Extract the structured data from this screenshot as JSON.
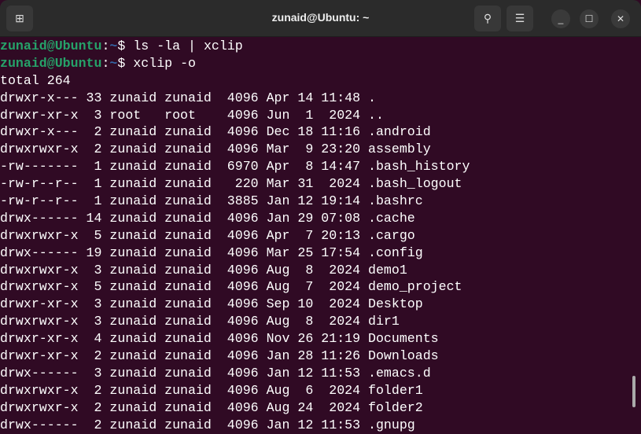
{
  "window": {
    "title": "zunaid@Ubuntu: ~"
  },
  "icons": {
    "new_tab": "new-tab-icon",
    "search": "search-icon",
    "menu": "hamburger-menu-icon",
    "minimize": "minimize-icon",
    "maximize": "maximize-icon",
    "close": "close-icon"
  },
  "colors": {
    "background": "#300a24",
    "prompt_user": "#26a269",
    "prompt_path": "#3465a4"
  },
  "prompts": [
    {
      "user": "zunaid@Ubuntu",
      "sep": ":",
      "path": "~",
      "sym": "$",
      "command": " ls -la | xclip"
    },
    {
      "user": "zunaid@Ubuntu",
      "sep": ":",
      "path": "~",
      "sym": "$",
      "command": " xclip -o"
    }
  ],
  "output": [
    "total 264",
    "drwxr-x--- 33 zunaid zunaid  4096 Apr 14 11:48 .",
    "drwxr-xr-x  3 root   root    4096 Jun  1  2024 ..",
    "drwxr-x---  2 zunaid zunaid  4096 Dec 18 11:16 .android",
    "drwxrwxr-x  2 zunaid zunaid  4096 Mar  9 23:20 assembly",
    "-rw-------  1 zunaid zunaid  6970 Apr  8 14:47 .bash_history",
    "-rw-r--r--  1 zunaid zunaid   220 Mar 31  2024 .bash_logout",
    "-rw-r--r--  1 zunaid zunaid  3885 Jan 12 19:14 .bashrc",
    "drwx------ 14 zunaid zunaid  4096 Jan 29 07:08 .cache",
    "drwxrwxr-x  5 zunaid zunaid  4096 Apr  7 20:13 .cargo",
    "drwx------ 19 zunaid zunaid  4096 Mar 25 17:54 .config",
    "drwxrwxr-x  3 zunaid zunaid  4096 Aug  8  2024 demo1",
    "drwxrwxr-x  5 zunaid zunaid  4096 Aug  7  2024 demo_project",
    "drwxr-xr-x  3 zunaid zunaid  4096 Sep 10  2024 Desktop",
    "drwxrwxr-x  3 zunaid zunaid  4096 Aug  8  2024 dir1",
    "drwxr-xr-x  4 zunaid zunaid  4096 Nov 26 21:19 Documents",
    "drwxr-xr-x  2 zunaid zunaid  4096 Jan 28 11:26 Downloads",
    "drwx------  3 zunaid zunaid  4096 Jan 12 11:53 .emacs.d",
    "drwxrwxr-x  2 zunaid zunaid  4096 Aug  6  2024 folder1",
    "drwxrwxr-x  2 zunaid zunaid  4096 Aug 24  2024 folder2",
    "drwx------  2 zunaid zunaid  4096 Jan 12 11:53 .gnupg"
  ]
}
